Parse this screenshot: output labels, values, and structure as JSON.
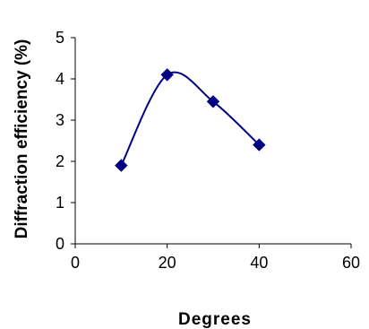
{
  "chart_data": {
    "type": "line",
    "smooth": true,
    "xlabel": "Degrees",
    "ylabel": "Diffraction efficiency (%)",
    "xlim": [
      0,
      60
    ],
    "ylim": [
      0,
      5
    ],
    "xticks": [
      "0",
      "20",
      "40",
      "60"
    ],
    "yticks": [
      "0",
      "1",
      "2",
      "3",
      "4",
      "5"
    ],
    "grid": false,
    "legend": "none",
    "series": [
      {
        "marker": "diamond",
        "color": "#000080",
        "x": [
          10,
          20,
          30,
          40
        ],
        "y": [
          1.9,
          4.1,
          3.45,
          2.4
        ]
      }
    ]
  }
}
